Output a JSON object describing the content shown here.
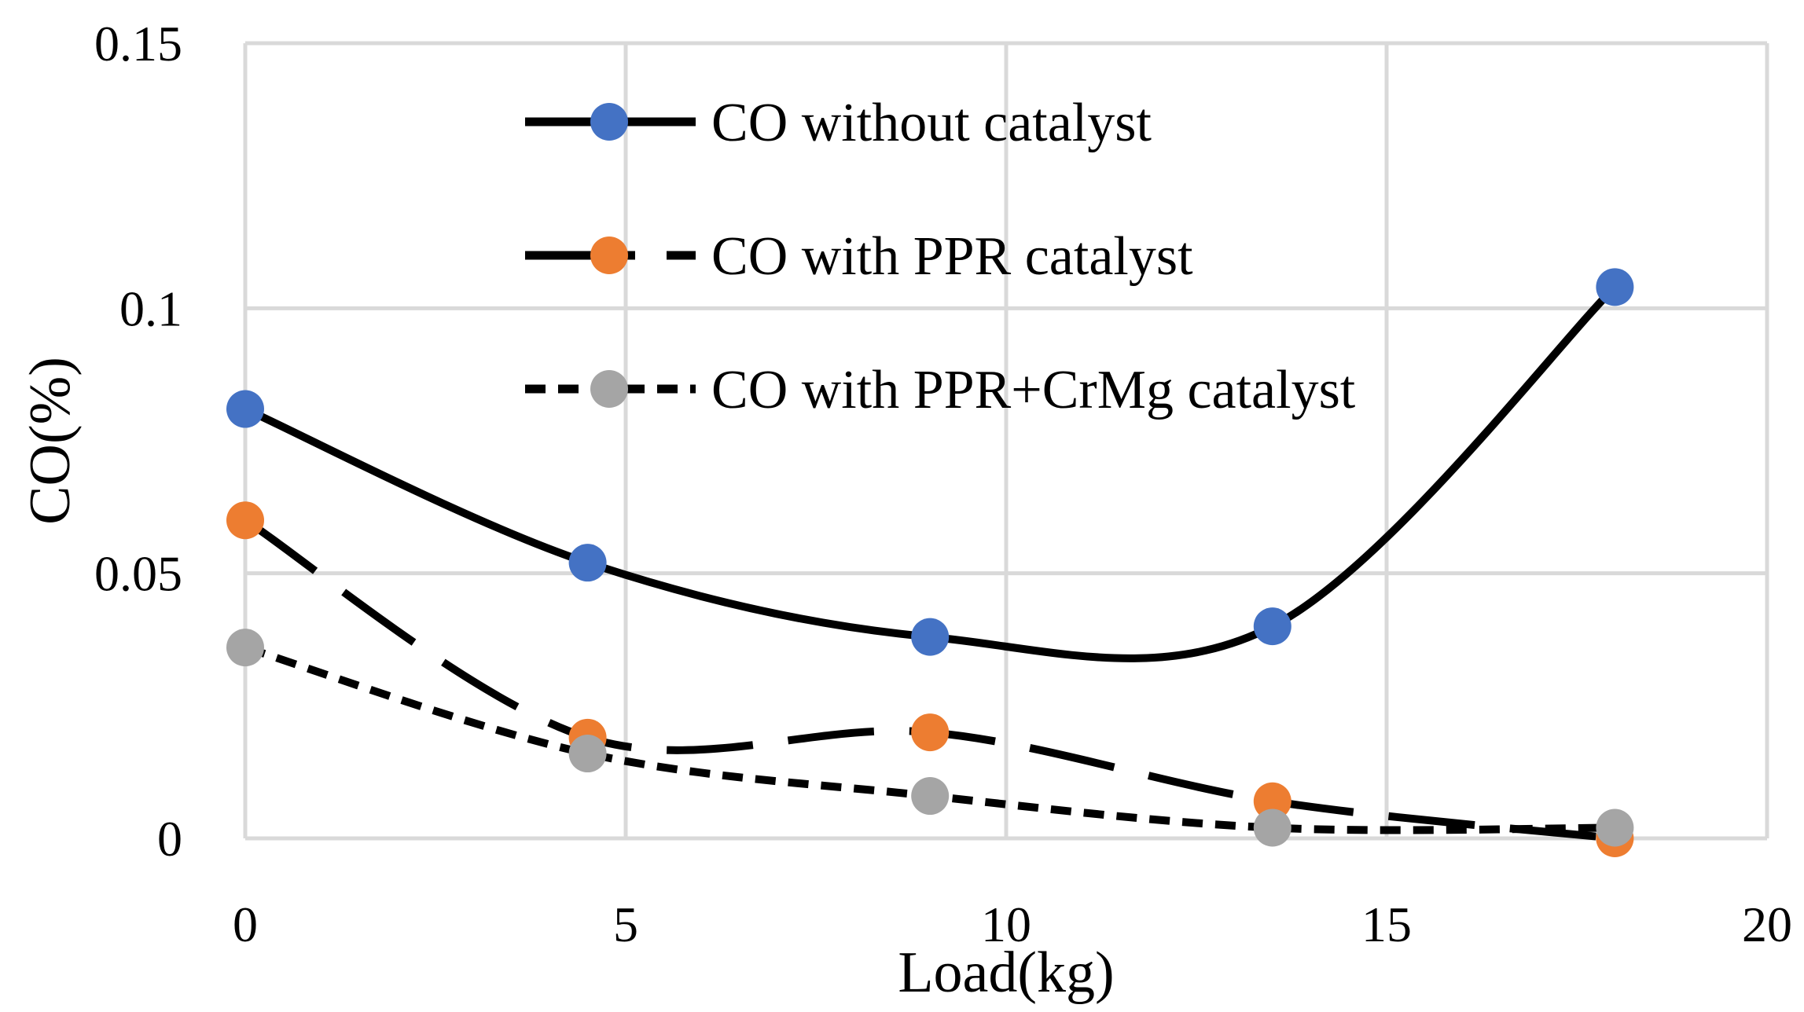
{
  "chart_data": {
    "type": "line",
    "title": "",
    "xlabel": "Load(kg)",
    "ylabel": "CO(%)",
    "xlim": [
      0,
      20
    ],
    "ylim": [
      0,
      0.15
    ],
    "x_ticks": [
      0,
      5,
      10,
      15,
      20
    ],
    "x_tick_labels": [
      "0",
      "5",
      "10",
      "15",
      "20"
    ],
    "y_ticks": [
      0,
      0.05,
      0.1,
      0.15
    ],
    "y_tick_labels": [
      "0",
      "0.05",
      "0.1",
      "0.15"
    ],
    "grid": true,
    "legend_position": "top-center",
    "x": [
      0,
      4.5,
      9,
      13.5,
      18
    ],
    "series": [
      {
        "name": "CO without catalyst",
        "values": [
          0.081,
          0.052,
          0.038,
          0.04,
          0.104
        ],
        "color": "#4472c4",
        "dash": "solid"
      },
      {
        "name": "CO with PPR catalyst",
        "values": [
          0.06,
          0.019,
          0.02,
          0.007,
          0.0
        ],
        "color": "#ed7d31",
        "dash": "long-dash"
      },
      {
        "name": "CO with PPR+CrMg catalyst",
        "values": [
          0.036,
          0.016,
          0.008,
          0.002,
          0.002
        ],
        "color": "#a5a5a5",
        "dash": "short-dash"
      }
    ],
    "line_color": "#000000"
  }
}
